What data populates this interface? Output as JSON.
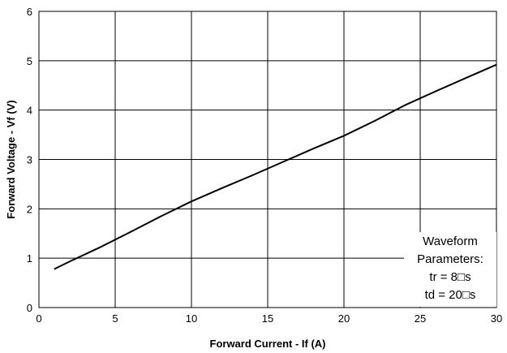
{
  "chart_data": {
    "type": "line",
    "title": "",
    "xlabel": "Forward Current - If (A)",
    "ylabel": "Forward Voltage - Vf (V)",
    "xlim": [
      0,
      30
    ],
    "ylim": [
      0,
      6
    ],
    "xticks": [
      0,
      5,
      10,
      15,
      20,
      25,
      30
    ],
    "yticks": [
      0,
      1,
      2,
      3,
      4,
      5,
      6
    ],
    "grid": true,
    "legend": "none",
    "series": [
      {
        "color": "#000000",
        "x": [
          1,
          2,
          4,
          6,
          8,
          10,
          12,
          14,
          16,
          18,
          20,
          22,
          24,
          26,
          28,
          30
        ],
        "y": [
          0.78,
          0.93,
          1.22,
          1.53,
          1.85,
          2.15,
          2.42,
          2.68,
          2.95,
          3.22,
          3.48,
          3.78,
          4.1,
          4.38,
          4.65,
          4.92
        ]
      }
    ],
    "annotation": {
      "lines": [
        "Waveform",
        "Parameters:",
        "tr = 8□s",
        "td = 20□s"
      ]
    }
  }
}
